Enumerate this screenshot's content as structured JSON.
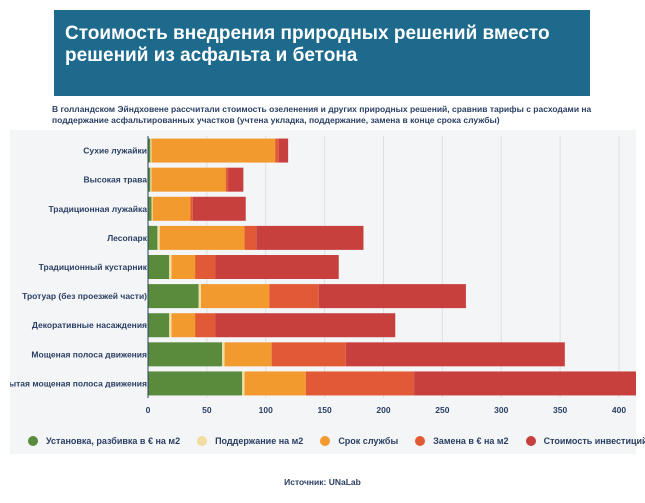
{
  "header": {
    "title": "Стоимость внедрения природных решений вместо решений из асфальта и бетона",
    "subtitle": "В голландском Эйндховене рассчитали стоимость озеленения и других природных решений, сравнив тарифы с расходами на поддержание асфальтированных участков (учтена укладка, поддержание, замена в конце срока службы)"
  },
  "legend": [
    {
      "label": "Установка, разбивка в € на м2",
      "color": "#5a8a3c"
    },
    {
      "label": "Поддержание на м2",
      "color": "#f0dea0"
    },
    {
      "label": "Срок службы",
      "color": "#f39a2e"
    },
    {
      "label": "Замена в € на м2",
      "color": "#e15a35"
    },
    {
      "label": "Стоимость инвестиций на м2",
      "color": "#c8403e"
    }
  ],
  "source": "Источник: UNaLab",
  "chart_data": {
    "type": "bar",
    "orientation": "horizontal",
    "stacked": true,
    "categories": [
      "Сухие лужайки",
      "Высокая трава",
      "Традиционная лужайка",
      "Лесопарк",
      "Традиционный кустарник",
      "Тротуар (без проезжей части)",
      "Декоративные насаждения",
      "Мощеная полоса движения",
      "Закрытая мощеная полоса движения"
    ],
    "series": [
      {
        "name": "Установка, разбивка в € на м2",
        "color": "#5a8a3c",
        "values": [
          2,
          2,
          3,
          8,
          18,
          43,
          18,
          63,
          80
        ]
      },
      {
        "name": "Поддержание на м2",
        "color": "#f0dea0",
        "values": [
          1,
          1,
          1,
          2,
          2,
          2,
          2,
          2,
          2
        ]
      },
      {
        "name": "Срок службы",
        "color": "#f39a2e",
        "values": [
          105,
          63,
          32,
          72,
          20,
          58,
          20,
          40,
          52
        ]
      },
      {
        "name": "Замена в € на м2",
        "color": "#e15a35",
        "values": [
          3,
          2,
          2,
          10,
          17,
          42,
          17,
          63,
          92
        ]
      },
      {
        "name": "Стоимость инвестиций на м2",
        "color": "#c8403e",
        "values": [
          8,
          13,
          45,
          91,
          105,
          125,
          153,
          186,
          189
        ]
      }
    ],
    "xlim": [
      0,
      410
    ],
    "xticks": [
      0,
      50,
      100,
      150,
      200,
      250,
      300,
      350,
      400
    ],
    "grid": true,
    "legend_position": "bottom"
  }
}
